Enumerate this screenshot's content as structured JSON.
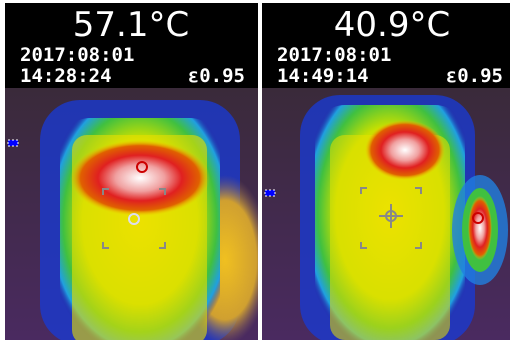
{
  "panels": [
    {
      "temperature": "57.1°C",
      "date": "2017:08:01",
      "time": "14:28:24",
      "emissivity": "ε0.95"
    },
    {
      "temperature": "40.9°C",
      "date": "2017:08:01",
      "time": "14:49:14",
      "emissivity": "ε0.95"
    }
  ]
}
